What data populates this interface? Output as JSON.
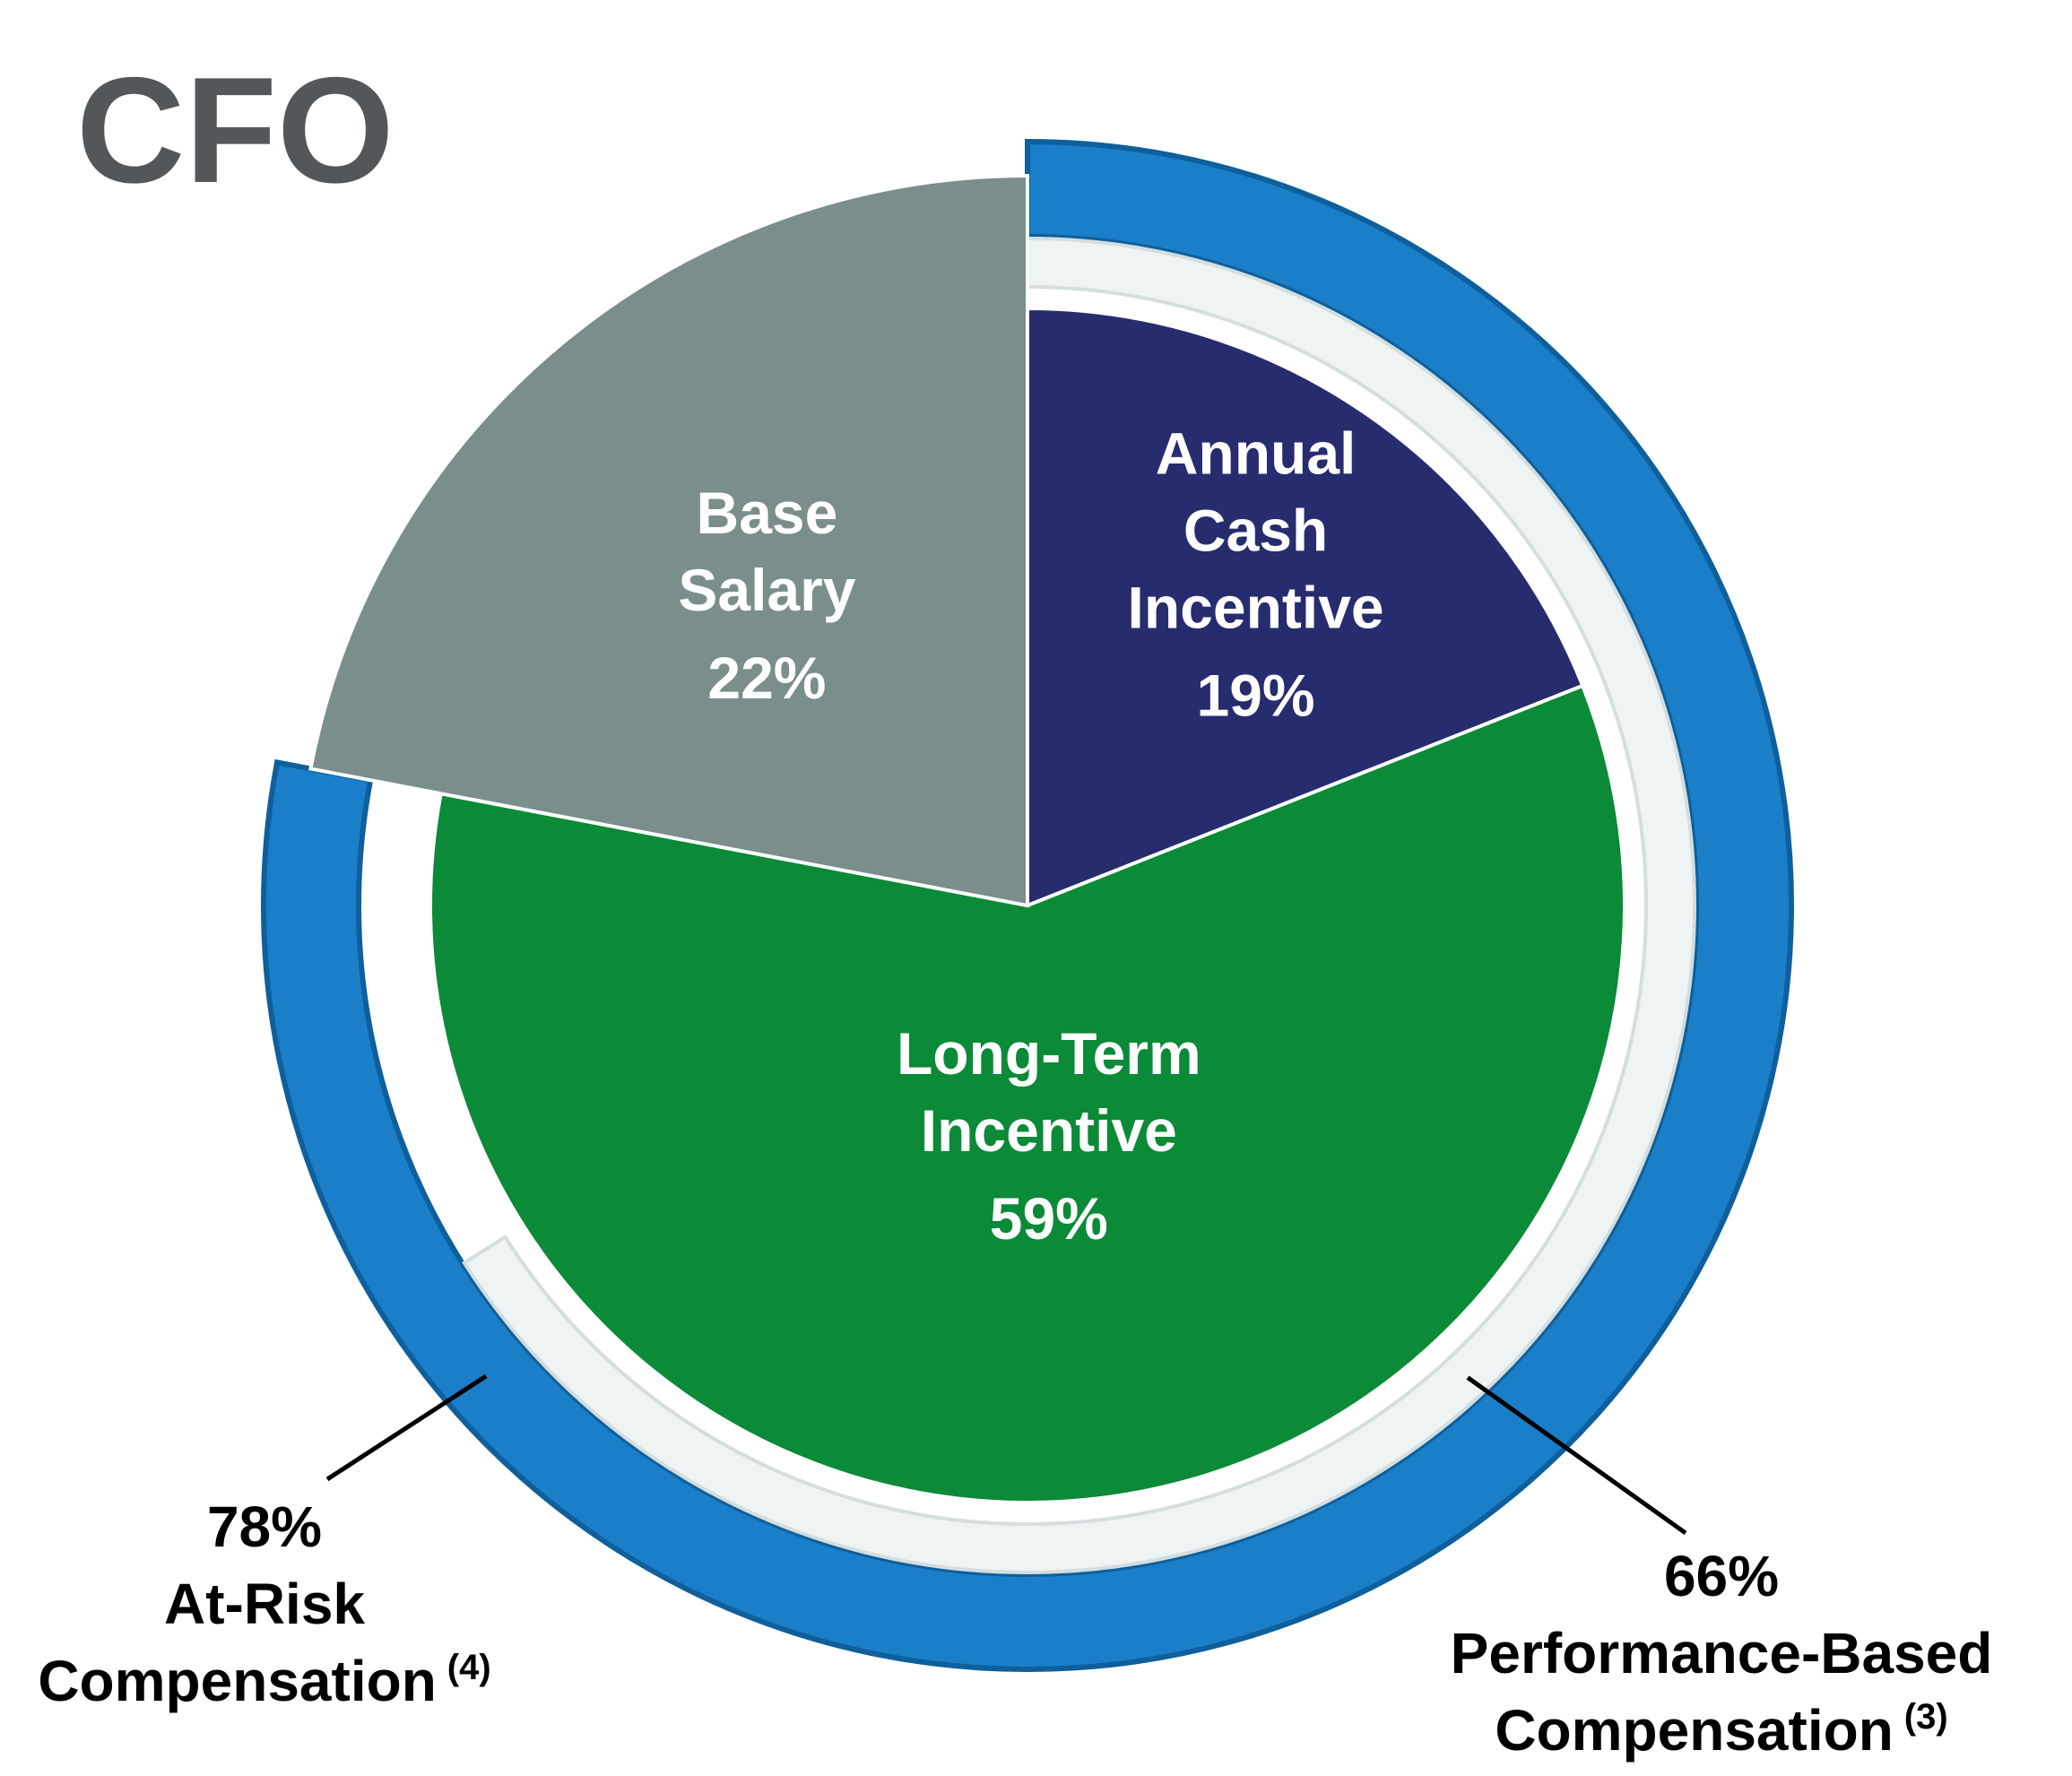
{
  "title": "CFO",
  "chart_data": {
    "type": "pie",
    "title": "CFO",
    "slices": [
      {
        "name": "Annual Cash Incentive",
        "label_lines": [
          "Annual",
          "Cash",
          "Incentive"
        ],
        "value": 19,
        "value_label": "19%",
        "color": "#272c6e"
      },
      {
        "name": "Long-Term Incentive",
        "label_lines": [
          "Long-Term",
          "Incentive"
        ],
        "value": 59,
        "value_label": "59%",
        "color": "#0b8a37"
      },
      {
        "name": "Base Salary",
        "label_lines": [
          "Base",
          "Salary"
        ],
        "value": 22,
        "value_label": "22%",
        "color": "#7a8e8c"
      }
    ],
    "rings": [
      {
        "name": "At-Risk Compensation",
        "value": 78,
        "value_label": "78%",
        "label_lines": [
          "At-Risk",
          "Compensation"
        ],
        "footnote": "(4)",
        "color": "#1a7fc8",
        "covers": [
          "Annual Cash Incentive",
          "Long-Term Incentive"
        ]
      },
      {
        "name": "Performance-Based Compensation",
        "value": 66,
        "value_label": "66%",
        "label_lines": [
          "Performance-Based",
          "Compensation"
        ],
        "footnote": "(3)",
        "color": "#eef3f3"
      }
    ]
  }
}
